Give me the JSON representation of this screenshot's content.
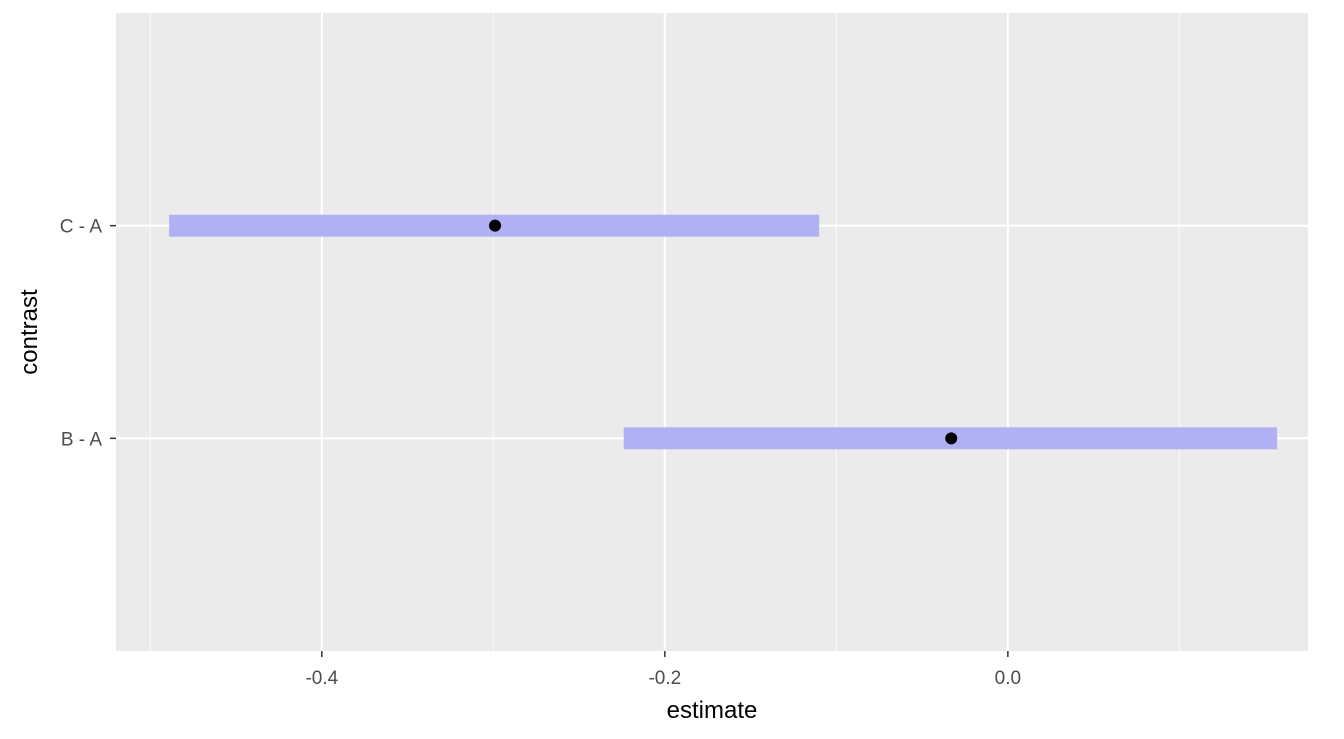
{
  "chart_data": {
    "type": "interval",
    "xlabel": "estimate",
    "ylabel": "contrast",
    "categories": [
      "B - A",
      "C - A"
    ],
    "estimates": [
      -0.033,
      -0.299
    ],
    "ci_lower": [
      -0.224,
      -0.489
    ],
    "ci_upper": [
      0.157,
      -0.11
    ],
    "xlim": [
      -0.52,
      0.175
    ],
    "x_ticks": [
      -0.4,
      -0.2,
      0.0
    ],
    "x_tick_labels": [
      "-0.4",
      "-0.2",
      "0.0"
    ],
    "grid": true,
    "legend": "none",
    "colors": {
      "panel_background": "#ebebeb",
      "grid_major": "#ffffff",
      "interval_fill": "#b0b0f2",
      "point": "#000000",
      "tick_text": "#4d4d4d",
      "tick_mark": "#333333"
    }
  }
}
